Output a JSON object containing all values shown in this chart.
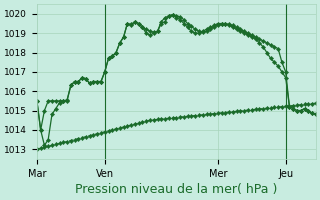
{
  "title": "Pression niveau de la mer( hPa )",
  "background_color": "#c8ece0",
  "grid_color": "#a8d4bc",
  "line_color": "#1a6b2a",
  "ylim": [
    1012.5,
    1020.5
  ],
  "yticks": [
    1013,
    1014,
    1015,
    1016,
    1017,
    1018,
    1019,
    1020
  ],
  "xtick_labels": [
    "Mar",
    "Ven",
    "Mer",
    "Jeu"
  ],
  "xtick_positions": [
    0,
    18,
    48,
    66
  ],
  "total_points": 75,
  "line1": [
    1015.5,
    1014.0,
    1015.0,
    1015.5,
    1015.5,
    1015.5,
    1015.5,
    1015.5,
    1015.5,
    1016.3,
    1016.5,
    1016.5,
    1016.7,
    1016.65,
    1016.4,
    1016.5,
    1016.5,
    1016.5,
    1017.0,
    1017.7,
    1017.8,
    1018.0,
    1018.5,
    1018.8,
    1019.5,
    1019.45,
    1019.6,
    1019.5,
    1019.3,
    1019.2,
    1019.1,
    1019.05,
    1019.1,
    1019.6,
    1019.8,
    1019.9,
    1019.95,
    1019.9,
    1019.85,
    1019.7,
    1019.5,
    1019.35,
    1019.2,
    1019.1,
    1019.05,
    1019.1,
    1019.2,
    1019.3,
    1019.4,
    1019.45,
    1019.5,
    1019.45,
    1019.4,
    1019.3,
    1019.2,
    1019.1,
    1019.0,
    1018.9,
    1018.8,
    1018.7,
    1018.6,
    1018.5,
    1018.4,
    1018.3,
    1018.2,
    1017.5,
    1017.0,
    1015.2,
    1015.1,
    1015.0,
    1015.0,
    1015.1,
    1015.0,
    1014.85,
    1014.8
  ],
  "line2": [
    1015.5,
    1014.0,
    1013.2,
    1013.5,
    1014.8,
    1015.1,
    1015.4,
    1015.5,
    1015.55,
    1016.3,
    1016.5,
    1016.5,
    1016.7,
    1016.65,
    1016.4,
    1016.5,
    1016.5,
    1016.5,
    1017.0,
    1017.7,
    1017.8,
    1018.0,
    1018.5,
    1018.8,
    1019.5,
    1019.4,
    1019.6,
    1019.5,
    1019.3,
    1019.0,
    1018.9,
    1019.0,
    1019.1,
    1019.5,
    1019.6,
    1019.9,
    1019.95,
    1019.8,
    1019.7,
    1019.5,
    1019.3,
    1019.1,
    1019.0,
    1019.0,
    1019.1,
    1019.2,
    1019.3,
    1019.4,
    1019.5,
    1019.5,
    1019.5,
    1019.4,
    1019.3,
    1019.2,
    1019.1,
    1019.0,
    1018.9,
    1018.8,
    1018.7,
    1018.5,
    1018.3,
    1018.0,
    1017.7,
    1017.5,
    1017.3,
    1017.0,
    1016.7,
    1015.2,
    1015.1,
    1015.0,
    1015.0,
    1015.1,
    1015.0,
    1014.85,
    1014.8
  ],
  "line3": [
    1013.0,
    1013.05,
    1013.1,
    1013.15,
    1013.2,
    1013.25,
    1013.3,
    1013.35,
    1013.4,
    1013.45,
    1013.5,
    1013.55,
    1013.6,
    1013.65,
    1013.7,
    1013.75,
    1013.8,
    1013.85,
    1013.9,
    1013.95,
    1014.0,
    1014.05,
    1014.1,
    1014.15,
    1014.2,
    1014.25,
    1014.3,
    1014.35,
    1014.4,
    1014.45,
    1014.5,
    1014.52,
    1014.54,
    1014.56,
    1014.58,
    1014.6,
    1014.62,
    1014.64,
    1014.66,
    1014.68,
    1014.7,
    1014.72,
    1014.74,
    1014.76,
    1014.78,
    1014.8,
    1014.82,
    1014.84,
    1014.86,
    1014.88,
    1014.9,
    1014.92,
    1014.94,
    1014.96,
    1014.98,
    1015.0,
    1015.02,
    1015.04,
    1015.06,
    1015.08,
    1015.1,
    1015.12,
    1015.14,
    1015.16,
    1015.18,
    1015.2,
    1015.22,
    1015.24,
    1015.26,
    1015.28,
    1015.3,
    1015.32,
    1015.34,
    1015.36,
    1015.38
  ],
  "vline_positions": [
    18,
    66
  ],
  "marker_size": 2.2,
  "linewidth": 0.9,
  "title_fontsize": 9
}
